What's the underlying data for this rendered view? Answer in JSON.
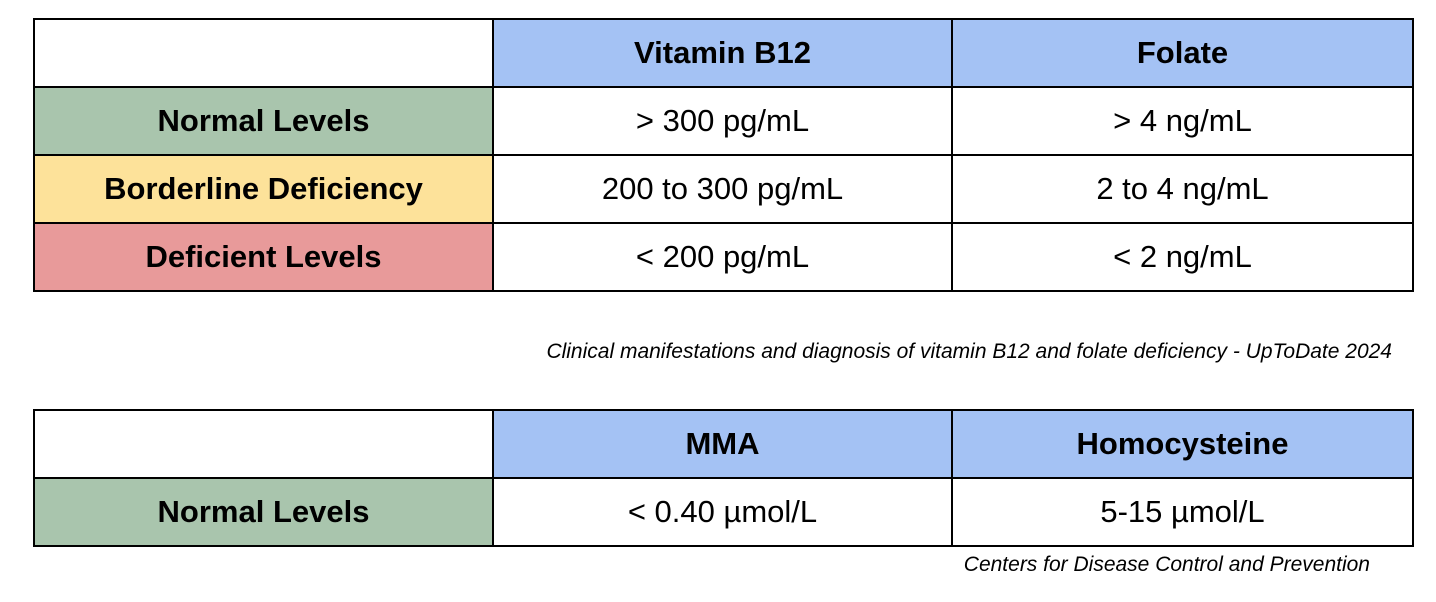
{
  "table1": {
    "columns": [
      "",
      "Vitamin B12",
      "Folate"
    ],
    "header_color": "#a4c2f4",
    "rows": [
      {
        "label": "Normal Levels",
        "color": "#a9c5ad",
        "b12": "> 300 pg/mL",
        "folate": "> 4 ng/mL"
      },
      {
        "label": "Borderline Deficiency",
        "color": "#fde29a",
        "b12": "200 to 300 pg/mL",
        "folate": "2 to 4 ng/mL"
      },
      {
        "label": "Deficient Levels",
        "color": "#e89a9a",
        "b12": "< 200 pg/mL",
        "folate": "< 2 ng/mL"
      }
    ],
    "source": "Clinical manifestations and diagnosis of vitamin B12 and folate deficiency - UpToDate 2024"
  },
  "table2": {
    "columns": [
      "",
      "MMA",
      "Homocysteine"
    ],
    "header_color": "#a4c2f4",
    "rows": [
      {
        "label": "Normal Levels",
        "color": "#a9c5ad",
        "mma": "< 0.40 µmol/L",
        "homocysteine": "5-15 µmol/L"
      }
    ],
    "source": "Centers for Disease Control and Prevention"
  }
}
